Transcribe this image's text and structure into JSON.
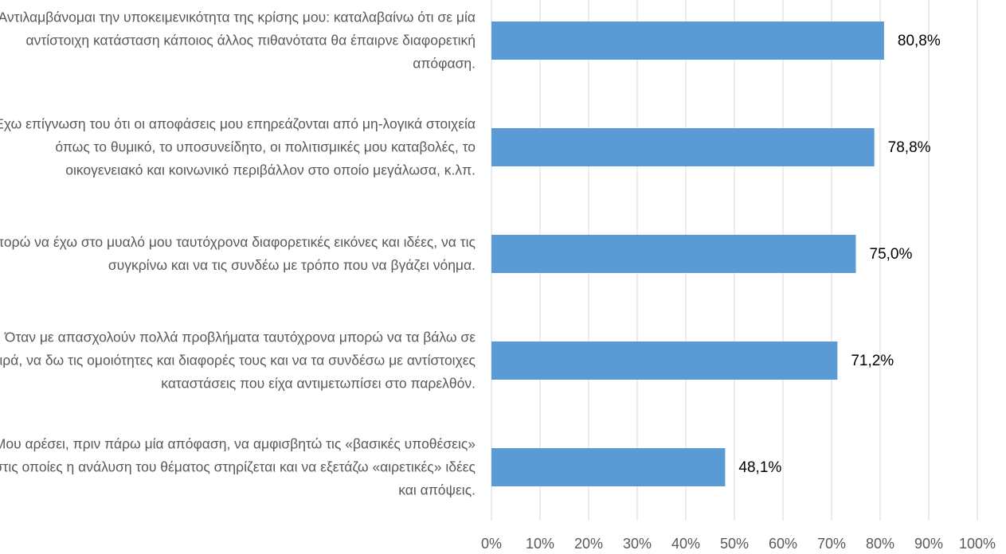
{
  "chart_data": {
    "type": "bar",
    "orientation": "horizontal",
    "categories": [
      "Αντιλαμβάνομαι την υποκειμενικότητα της κρίσης μου: καταλαβαίνω ότι σε μία αντίστοιχη κατάσταση κάποιος άλλος πιθανότατα θα έπαιρνε διαφορετική απόφαση.",
      "Έχω επίγνωση του ότι οι αποφάσεις μου επηρεάζονται από μη-λογικά στοιχεία όπως το θυμικό, το υποσυνείδητο, οι πολιτισμικές μου καταβολές, το οικογενειακό και κοινωνικό περιβάλλον στο οποίο μεγάλωσα, κ.λπ.",
      "Μπορώ να έχω στο μυαλό μου ταυτόχρονα διαφορετικές εικόνες και ιδέες, να τις συγκρίνω και να τις συνδέω με τρόπο που να βγάζει νόημα.",
      "Όταν με απασχολούν πολλά προβλήματα ταυτόχρονα μπορώ να τα βάλω σε σειρά, να δω τις ομοιότητες και διαφορές τους και να τα συνδέσω με αντίστοιχες καταστάσεις που είχα αντιμετωπίσει στο παρελθόν.",
      "Μου αρέσει, πριν πάρω μία απόφαση, να αμφισβητώ τις «βασικές υποθέσεις» στις οποίες η ανάλυση του θέματος στηρίζεται και να εξετάζω «αιρετικές» ιδέες και απόψεις."
    ],
    "values": [
      80.8,
      78.8,
      75.0,
      71.2,
      48.1
    ],
    "value_labels": [
      "80,8%",
      "78,8%",
      "75,0%",
      "71,2%",
      "48,1%"
    ],
    "color": "#5b9bd5",
    "xlim": [
      0,
      100
    ],
    "xticks": [
      {
        "value": 0,
        "label": "0%"
      },
      {
        "value": 10,
        "label": "10%"
      },
      {
        "value": 20,
        "label": "20%"
      },
      {
        "value": 30,
        "label": "30%"
      },
      {
        "value": 40,
        "label": "40%"
      },
      {
        "value": 50,
        "label": "50%"
      },
      {
        "value": 60,
        "label": "60%"
      },
      {
        "value": 70,
        "label": "70%"
      },
      {
        "value": 80,
        "label": "80%"
      },
      {
        "value": 90,
        "label": "90%"
      },
      {
        "value": 100,
        "label": "100%"
      }
    ],
    "grid": true
  }
}
